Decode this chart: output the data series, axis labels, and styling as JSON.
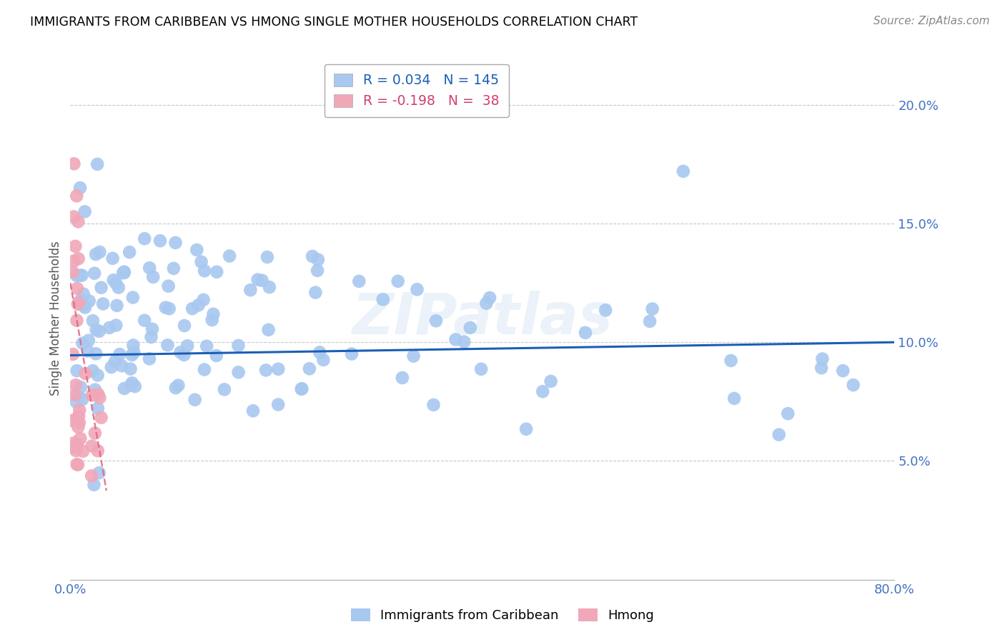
{
  "title": "IMMIGRANTS FROM CARIBBEAN VS HMONG SINGLE MOTHER HOUSEHOLDS CORRELATION CHART",
  "source": "Source: ZipAtlas.com",
  "ylabel": "Single Mother Households",
  "xlim": [
    0.0,
    0.8
  ],
  "ylim": [
    0.0,
    0.22
  ],
  "yticks": [
    0.05,
    0.1,
    0.15,
    0.2
  ],
  "ytick_labels": [
    "5.0%",
    "10.0%",
    "15.0%",
    "20.0%"
  ],
  "xticks": [
    0.0,
    0.1,
    0.2,
    0.3,
    0.4,
    0.5,
    0.6,
    0.7,
    0.8
  ],
  "xtick_labels": [
    "0.0%",
    "",
    "",
    "",
    "",
    "",
    "",
    "",
    "80.0%"
  ],
  "caribbean_color": "#a8c8f0",
  "hmong_color": "#f0a8b8",
  "trendline_caribbean_color": "#1a5fb4",
  "trendline_hmong_color": "#e06880",
  "r_caribbean": 0.034,
  "n_caribbean": 145,
  "r_hmong": -0.198,
  "n_hmong": 38,
  "watermark": "ZIPatlas",
  "background_color": "#ffffff",
  "axis_label_color": "#4472c4",
  "title_color": "#000000",
  "legend_car_r": "0.034",
  "legend_car_n": "145",
  "legend_hm_r": "-0.198",
  "legend_hm_n": " 38"
}
